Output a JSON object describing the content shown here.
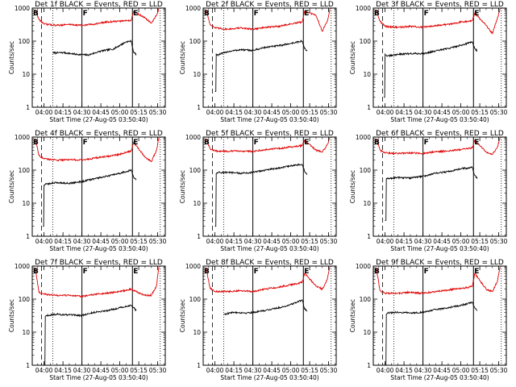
{
  "figure": {
    "xlabel": "Start Time (27-Aug-05 03:50:40)",
    "ylabel": "Counts/sec",
    "x_tick_labels": [
      "04:00",
      "04:15",
      "04:30",
      "04:45",
      "05:00",
      "05:15",
      "05:30"
    ],
    "y_tick_labels": [
      "1",
      "10",
      "100",
      "1000"
    ],
    "segment_labels": [
      "B",
      "F",
      "E"
    ],
    "colors": {
      "events": "#000000",
      "lld": "#e00000",
      "axes": "#000000"
    }
  },
  "chart_data": [
    {
      "type": "line",
      "title": "Det 1f BLACK = Events, RED = LLD",
      "x_range": [
        "03:50:40",
        "05:36"
      ],
      "y_range": [
        1,
        1000
      ],
      "y_scale": "log",
      "solid_vlines": [
        "04:30",
        "05:10"
      ],
      "dashed_vlines": [
        "03:58"
      ],
      "dotted_vlines": [
        "04:07",
        "05:32"
      ],
      "series": [
        {
          "name": "BLACK = Events",
          "x": [
            "04:07",
            "04:15",
            "04:25",
            "04:35",
            "04:45",
            "04:55",
            "05:05",
            "05:09",
            "05:11",
            "05:13"
          ],
          "y": [
            44,
            45,
            40,
            38,
            50,
            58,
            95,
            100,
            45,
            40
          ]
        },
        {
          "name": "RED = LLD",
          "x": [
            "03:53",
            "03:56",
            "04:00",
            "04:10",
            "04:20",
            "04:30",
            "04:40",
            "04:50",
            "05:00",
            "05:09",
            "05:11",
            "05:20",
            "05:25",
            "05:29",
            "05:31"
          ],
          "y": [
            900,
            450,
            330,
            300,
            320,
            300,
            330,
            380,
            400,
            430,
            800,
            500,
            350,
            600,
            950
          ]
        }
      ]
    },
    {
      "type": "line",
      "title": "Det 2f BLACK = Events, RED = LLD",
      "x_range": [
        "03:50:40",
        "05:36"
      ],
      "y_range": [
        1,
        1000
      ],
      "y_scale": "log",
      "solid_vlines": [
        "04:30",
        "05:10"
      ],
      "dashed_vlines": [
        "03:58"
      ],
      "dotted_vlines": [
        "04:07",
        "05:32"
      ],
      "series": [
        {
          "name": "BLACK = Events",
          "x": [
            "04:00",
            "04:01",
            "04:02",
            "04:10",
            "04:20",
            "04:30",
            "04:40",
            "04:50",
            "05:00",
            "05:09",
            "05:11",
            "05:13"
          ],
          "y": [
            3,
            40,
            38,
            48,
            55,
            52,
            65,
            72,
            85,
            100,
            60,
            50
          ]
        },
        {
          "name": "RED = LLD",
          "x": [
            "03:53",
            "03:56",
            "04:00",
            "04:10",
            "04:20",
            "04:30",
            "04:40",
            "04:50",
            "05:00",
            "05:09",
            "05:11",
            "05:20",
            "05:25",
            "05:29",
            "05:31"
          ],
          "y": [
            900,
            330,
            250,
            230,
            250,
            230,
            260,
            280,
            330,
            380,
            800,
            600,
            200,
            400,
            950
          ]
        }
      ]
    },
    {
      "type": "line",
      "title": "Det 3f BLACK = Events, RED = LLD",
      "x_range": [
        "03:50:40",
        "05:36"
      ],
      "y_range": [
        1,
        1000
      ],
      "y_scale": "log",
      "solid_vlines": [
        "04:30",
        "05:10"
      ],
      "dashed_vlines": [
        "03:58"
      ],
      "dotted_vlines": [
        "04:07",
        "05:32"
      ],
      "series": [
        {
          "name": "BLACK = Events",
          "x": [
            "03:59",
            "04:00",
            "04:02",
            "04:10",
            "04:20",
            "04:30",
            "04:40",
            "04:50",
            "05:00",
            "05:09",
            "05:11",
            "05:13"
          ],
          "y": [
            2,
            40,
            35,
            40,
            42,
            42,
            50,
            60,
            75,
            95,
            60,
            50
          ]
        },
        {
          "name": "RED = LLD",
          "x": [
            "03:53",
            "03:56",
            "04:00",
            "04:10",
            "04:20",
            "04:30",
            "04:40",
            "04:50",
            "05:00",
            "05:09",
            "05:11",
            "05:20",
            "05:25",
            "05:29",
            "05:31"
          ],
          "y": [
            900,
            400,
            280,
            260,
            280,
            260,
            300,
            320,
            380,
            420,
            700,
            300,
            170,
            500,
            950
          ]
        }
      ]
    },
    {
      "type": "line",
      "title": "Det 4f BLACK = Events, RED = LLD",
      "x_range": [
        "03:50:40",
        "05:36"
      ],
      "y_range": [
        1,
        1000
      ],
      "y_scale": "log",
      "solid_vlines": [
        "04:30",
        "05:10"
      ],
      "dashed_vlines": [
        "03:58"
      ],
      "dotted_vlines": [
        "04:07",
        "05:32"
      ],
      "series": [
        {
          "name": "BLACK = Events",
          "x": [
            "03:59",
            "04:00",
            "04:02",
            "04:10",
            "04:20",
            "04:30",
            "04:40",
            "04:50",
            "05:00",
            "05:09",
            "05:11",
            "05:13"
          ],
          "y": [
            2,
            35,
            38,
            42,
            40,
            45,
            55,
            65,
            80,
            100,
            60,
            50
          ]
        },
        {
          "name": "RED = LLD",
          "x": [
            "03:53",
            "03:56",
            "04:00",
            "04:10",
            "04:20",
            "04:30",
            "04:40",
            "04:50",
            "05:00",
            "05:09",
            "05:11",
            "05:20",
            "05:25",
            "05:29",
            "05:31"
          ],
          "y": [
            900,
            280,
            220,
            200,
            210,
            200,
            230,
            260,
            300,
            380,
            700,
            250,
            180,
            400,
            950
          ]
        }
      ]
    },
    {
      "type": "line",
      "title": "Det 5f BLACK = Events, RED = LLD",
      "x_range": [
        "03:50:40",
        "05:36"
      ],
      "y_range": [
        1,
        1000
      ],
      "y_scale": "log",
      "solid_vlines": [
        "04:30",
        "05:10"
      ],
      "dashed_vlines": [
        "03:58"
      ],
      "dotted_vlines": [
        "04:07",
        "05:32"
      ],
      "series": [
        {
          "name": "BLACK = Events",
          "x": [
            "04:00",
            "04:01",
            "04:02",
            "04:10",
            "04:20",
            "04:30",
            "04:40",
            "04:50",
            "05:00",
            "05:09",
            "05:11",
            "05:13"
          ],
          "y": [
            2,
            80,
            85,
            85,
            80,
            85,
            100,
            115,
            135,
            150,
            90,
            75
          ]
        },
        {
          "name": "RED = LLD",
          "x": [
            "03:53",
            "03:56",
            "04:00",
            "04:10",
            "04:20",
            "04:30",
            "04:40",
            "04:50",
            "05:00",
            "05:09",
            "05:11",
            "05:20",
            "05:25",
            "05:29",
            "05:31"
          ],
          "y": [
            900,
            450,
            380,
            370,
            380,
            370,
            420,
            450,
            500,
            550,
            800,
            400,
            350,
            600,
            950
          ]
        }
      ]
    },
    {
      "type": "line",
      "title": "Det 6f BLACK = Events, RED = LLD",
      "x_range": [
        "03:50:40",
        "05:36"
      ],
      "y_range": [
        1,
        1000
      ],
      "y_scale": "log",
      "solid_vlines": [
        "04:30",
        "05:10"
      ],
      "dashed_vlines": [
        "03:58"
      ],
      "dotted_vlines": [
        "04:07",
        "05:32"
      ],
      "series": [
        {
          "name": "BLACK = Events",
          "x": [
            "04:00",
            "04:01",
            "04:02",
            "04:10",
            "04:20",
            "04:30",
            "04:40",
            "04:50",
            "05:00",
            "05:09",
            "05:11",
            "05:13"
          ],
          "y": [
            3,
            55,
            55,
            60,
            58,
            65,
            80,
            90,
            110,
            120,
            70,
            55
          ]
        },
        {
          "name": "RED = LLD",
          "x": [
            "03:53",
            "03:56",
            "04:00",
            "04:10",
            "04:20",
            "04:30",
            "04:40",
            "04:50",
            "05:00",
            "05:09",
            "05:11",
            "05:20",
            "05:25",
            "05:29",
            "05:31"
          ],
          "y": [
            900,
            400,
            330,
            320,
            330,
            320,
            360,
            380,
            420,
            480,
            800,
            350,
            300,
            500,
            950
          ]
        }
      ]
    },
    {
      "type": "line",
      "title": "Det 7f BLACK = Events, RED = LLD",
      "x_range": [
        "03:50:40",
        "05:36"
      ],
      "y_range": [
        1,
        1000
      ],
      "y_scale": "log",
      "solid_vlines": [
        "04:30",
        "05:10"
      ],
      "dashed_vlines": [
        "03:58"
      ],
      "dotted_vlines": [
        "04:07",
        "05:32"
      ],
      "series": [
        {
          "name": "BLACK = Events",
          "x": [
            "04:00",
            "04:01",
            "04:02",
            "04:10",
            "04:20",
            "04:30",
            "04:40",
            "04:50",
            "05:00",
            "05:09",
            "05:11",
            "05:13"
          ],
          "y": [
            1,
            30,
            32,
            35,
            33,
            32,
            40,
            45,
            55,
            65,
            55,
            45
          ]
        },
        {
          "name": "RED = LLD",
          "x": [
            "03:53",
            "03:56",
            "04:00",
            "04:10",
            "04:20",
            "04:30",
            "04:40",
            "04:50",
            "05:00",
            "05:09",
            "05:11",
            "05:20",
            "05:25",
            "05:29",
            "05:31"
          ],
          "y": [
            900,
            160,
            140,
            130,
            130,
            120,
            140,
            150,
            170,
            200,
            180,
            130,
            130,
            250,
            950
          ]
        }
      ]
    },
    {
      "type": "line",
      "title": "Det 8f BLACK = Events, RED = LLD",
      "x_range": [
        "03:50:40",
        "05:36"
      ],
      "y_range": [
        1,
        1000
      ],
      "y_scale": "log",
      "solid_vlines": [
        "04:30",
        "05:10"
      ],
      "dashed_vlines": [
        "03:58"
      ],
      "dotted_vlines": [
        "04:07",
        "05:32"
      ],
      "series": [
        {
          "name": "BLACK = Events",
          "x": [
            "04:07",
            "04:15",
            "04:25",
            "04:35",
            "04:45",
            "04:55",
            "05:05",
            "05:09",
            "05:11",
            "05:13"
          ],
          "y": [
            35,
            40,
            38,
            42,
            50,
            60,
            80,
            95,
            50,
            45
          ]
        },
        {
          "name": "RED = LLD",
          "x": [
            "03:53",
            "03:56",
            "04:00",
            "04:10",
            "04:20",
            "04:30",
            "04:40",
            "04:50",
            "05:00",
            "05:09",
            "05:11",
            "05:20",
            "05:25",
            "05:29",
            "05:31"
          ],
          "y": [
            900,
            220,
            170,
            170,
            180,
            170,
            200,
            230,
            270,
            320,
            600,
            250,
            200,
            400,
            950
          ]
        }
      ]
    },
    {
      "type": "line",
      "title": "Det 9f BLACK = Events, RED = LLD",
      "x_range": [
        "03:50:40",
        "05:36"
      ],
      "y_range": [
        1,
        1000
      ],
      "y_scale": "log",
      "solid_vlines": [
        "04:30",
        "05:10"
      ],
      "dashed_vlines": [
        "03:58"
      ],
      "dotted_vlines": [
        "04:07",
        "05:32"
      ],
      "series": [
        {
          "name": "BLACK = Events",
          "x": [
            "04:00",
            "04:01",
            "04:02",
            "04:10",
            "04:20",
            "04:30",
            "04:40",
            "04:50",
            "05:00",
            "05:09",
            "05:11",
            "05:13"
          ],
          "y": [
            1,
            35,
            38,
            40,
            38,
            40,
            48,
            55,
            65,
            80,
            55,
            45
          ]
        },
        {
          "name": "RED = LLD",
          "x": [
            "03:53",
            "03:56",
            "04:00",
            "04:10",
            "04:20",
            "04:30",
            "04:40",
            "04:50",
            "05:00",
            "05:09",
            "05:11",
            "05:20",
            "05:25",
            "05:29",
            "05:31"
          ],
          "y": [
            900,
            180,
            150,
            150,
            160,
            150,
            170,
            190,
            210,
            240,
            600,
            200,
            170,
            350,
            950
          ]
        }
      ]
    }
  ]
}
